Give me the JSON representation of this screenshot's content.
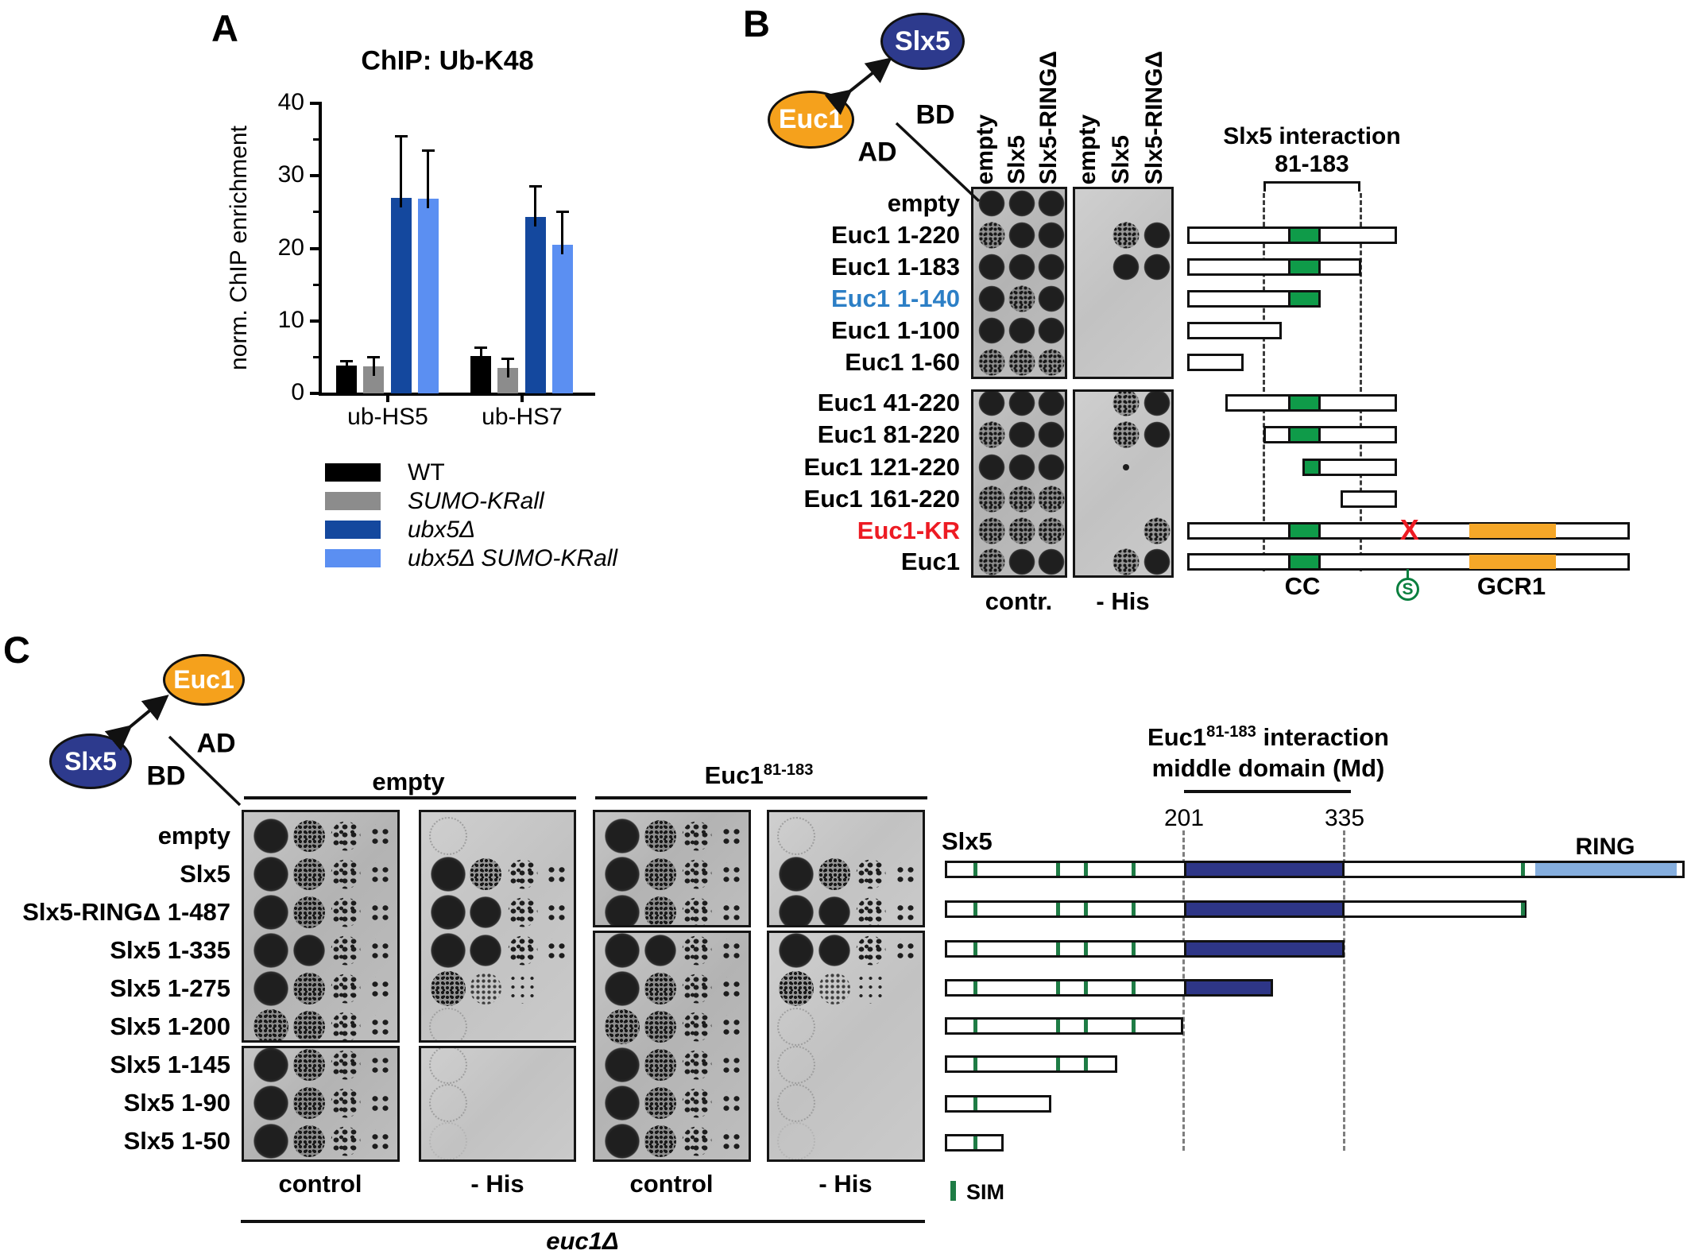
{
  "colors": {
    "dark_blue_bar": "#14489e",
    "light_blue_bar": "#5b8ff2",
    "gray_bar": "#8c8c8c",
    "black_bar": "#000000",
    "slx5_oval": "#2d3a8d",
    "euc1_oval": "#f5a11c",
    "cc_green": "#0f9b49",
    "sim_green": "#1e7c45",
    "md_blue": "#2e3687",
    "ring_blue": "#85aede",
    "gcr1_orange": "#f5a728",
    "red": "#ed1b23",
    "label_blue": "#2c7fc6"
  },
  "panelA": {
    "label": "A",
    "title": "ChIP: Ub-K48",
    "ylabel": "norm. ChIP enrichment",
    "chart_data": {
      "type": "bar",
      "categories": [
        "ub-HS5",
        "ub-HS7"
      ],
      "series": [
        {
          "name": "WT",
          "italic": false,
          "color": "#000000",
          "values": [
            3.8,
            5.2
          ],
          "errors": [
            0.6,
            1.1
          ]
        },
        {
          "name": "SUMO-KRall",
          "italic": true,
          "color": "#8c8c8c",
          "values": [
            3.7,
            3.5
          ],
          "errors": [
            1.3,
            1.3
          ]
        },
        {
          "name": "ubx5Δ",
          "italic": true,
          "color": "#14489e",
          "values": [
            27.0,
            24.3
          ],
          "errors": [
            8.5,
            4.2
          ]
        },
        {
          "name": "ubx5Δ SUMO-KRall",
          "italic": true,
          "color": "#5b8ff2",
          "values": [
            26.8,
            20.5
          ],
          "errors": [
            6.7,
            4.5
          ]
        }
      ],
      "ylim": [
        0,
        40
      ],
      "yticks_major": [
        0,
        10,
        20,
        30,
        40
      ],
      "yticks_minor": [
        5,
        15,
        25,
        35
      ],
      "grid": false,
      "legend_position": "below"
    }
  },
  "panelB": {
    "label": "B",
    "cartoon": {
      "top_protein": "Slx5",
      "bottom_protein": "Euc1",
      "bd": "BD",
      "ad": "AD"
    },
    "col_labels": [
      "empty",
      "Slx5",
      "Slx5-RINGΔ"
    ],
    "plate_labels": [
      "contr.",
      "- His"
    ],
    "interaction_title_line1": "Slx5 interaction",
    "interaction_title_line2": "81-183",
    "interaction_range": [
      81,
      183
    ],
    "domain_labels": {
      "cc": "CC",
      "s": "S",
      "gcr1": "GCR1",
      "x": "X"
    },
    "rows": [
      {
        "label": "empty",
        "color": "#000000",
        "block": 1,
        "contr": [
          "solid",
          "solid",
          "solid"
        ],
        "his": [
          "none",
          "none",
          "none"
        ],
        "bar": null
      },
      {
        "label": "Euc1 1-220",
        "color": "#000000",
        "block": 1,
        "contr": [
          "speckled",
          "solid",
          "solid"
        ],
        "his": [
          "none",
          "speckled",
          "solid"
        ],
        "bar": {
          "start": 1,
          "end": 220,
          "cc": [
            106,
            140
          ]
        }
      },
      {
        "label": "Euc1 1-183",
        "color": "#000000",
        "block": 1,
        "contr": [
          "solid",
          "solid",
          "solid"
        ],
        "his": [
          "none",
          "solid",
          "solid"
        ],
        "bar": {
          "start": 1,
          "end": 183,
          "cc": [
            106,
            140
          ]
        }
      },
      {
        "label": "Euc1 1-140",
        "color": "#2c7fc6",
        "block": 1,
        "contr": [
          "solid",
          "speckled",
          "solid"
        ],
        "his": [
          "none",
          "none",
          "none"
        ],
        "bar": {
          "start": 1,
          "end": 140,
          "cc": [
            106,
            140
          ]
        }
      },
      {
        "label": "Euc1 1-100",
        "color": "#000000",
        "block": 1,
        "contr": [
          "solid",
          "solid",
          "solid"
        ],
        "his": [
          "none",
          "none",
          "none"
        ],
        "bar": {
          "start": 1,
          "end": 100
        }
      },
      {
        "label": "Euc1 1-60",
        "color": "#000000",
        "block": 1,
        "contr": [
          "speckled",
          "speckled",
          "speckled"
        ],
        "his": [
          "none",
          "none",
          "none"
        ],
        "bar": {
          "start": 1,
          "end": 60
        }
      },
      {
        "label": "Euc1 41-220",
        "color": "#000000",
        "block": 2,
        "contr": [
          "solid",
          "solid",
          "solid"
        ],
        "his": [
          "none",
          "speckled",
          "solid"
        ],
        "bar": {
          "start": 41,
          "end": 220,
          "cc": [
            106,
            140
          ]
        }
      },
      {
        "label": "Euc1 81-220",
        "color": "#000000",
        "block": 2,
        "contr": [
          "speckled",
          "solid",
          "solid"
        ],
        "his": [
          "none",
          "speckled",
          "solid"
        ],
        "bar": {
          "start": 81,
          "end": 220,
          "cc": [
            106,
            140
          ]
        }
      },
      {
        "label": "Euc1 121-220",
        "color": "#000000",
        "block": 2,
        "contr": [
          "solid",
          "solid",
          "solid"
        ],
        "his": [
          "none",
          "tiny",
          "none"
        ],
        "bar": {
          "start": 121,
          "end": 220,
          "cc": [
            121,
            140
          ]
        }
      },
      {
        "label": "Euc1 161-220",
        "color": "#000000",
        "block": 2,
        "contr": [
          "speckled",
          "speckled",
          "speckled"
        ],
        "his": [
          "none",
          "none",
          "none"
        ],
        "bar": {
          "start": 161,
          "end": 220
        }
      },
      {
        "label": "Euc1-KR",
        "color": "#ed1b23",
        "block": 2,
        "contr": [
          "speckled",
          "speckled",
          "speckled"
        ],
        "his": [
          "none",
          "none",
          "speckled"
        ],
        "bar": {
          "start": 1,
          "end": 463,
          "cc": [
            106,
            140
          ],
          "gcr1": [
            295,
            386
          ],
          "x_at": 233
        }
      },
      {
        "label": "Euc1",
        "color": "#000000",
        "block": 2,
        "contr": [
          "speckled",
          "solid",
          "solid"
        ],
        "his": [
          "none",
          "speckled",
          "solid"
        ],
        "bar": {
          "start": 1,
          "end": 463,
          "cc": [
            106,
            140
          ],
          "gcr1": [
            295,
            386
          ],
          "s_at": 233
        }
      }
    ]
  },
  "panelC": {
    "label": "C",
    "cartoon": {
      "top_protein": "Euc1",
      "bottom_protein": "Slx5",
      "ad": "AD",
      "bd": "BD"
    },
    "group_titles": [
      {
        "text": "empty",
        "sup": ""
      },
      {
        "text": "Euc1",
        "sup": "81-183"
      }
    ],
    "plate_labels": [
      "control",
      "- His",
      "control",
      "- His"
    ],
    "strain": "euc1Δ",
    "diagram_title_main": "Euc1",
    "diagram_title_sup": "81-183",
    "diagram_title_rest": " interaction",
    "diagram_title_line2": "middle domain (Md)",
    "boundary_labels": [
      "201",
      "335"
    ],
    "boundaries": [
      201,
      335
    ],
    "protein_label": "Slx5",
    "ring_label": "RING",
    "sim_legend": "SIM",
    "rows": [
      {
        "label": "empty",
        "contr": [
          "solid",
          "speckled",
          "colonies",
          "few"
        ],
        "his": [
          "ghost",
          "none",
          "none",
          "none"
        ],
        "bar": null
      },
      {
        "label": "Slx5",
        "contr": [
          "solid",
          "speckled",
          "colonies",
          "few"
        ],
        "his": [
          "solid",
          "speckled",
          "colonies",
          "few"
        ],
        "bar": {
          "start": 1,
          "end": 619,
          "sims": [
            25,
            94,
            117,
            157,
            482
          ],
          "md": [
            201,
            335
          ],
          "ring": [
            494,
            612
          ]
        }
      },
      {
        "label": "Slx5-RINGΔ 1-487",
        "contr": [
          "solid",
          "speckled",
          "colonies",
          "few"
        ],
        "his": [
          "solid",
          "solid",
          "colonies",
          "few"
        ],
        "bar": {
          "start": 1,
          "end": 487,
          "sims": [
            25,
            94,
            117,
            157,
            482
          ],
          "md": [
            201,
            335
          ]
        }
      },
      {
        "label": "Slx5 1-335",
        "contr": [
          "solid",
          "solid",
          "colonies",
          "few"
        ],
        "his": [
          "solid",
          "solid",
          "colonies",
          "few"
        ],
        "bar": {
          "start": 1,
          "end": 335,
          "sims": [
            25,
            94,
            117,
            157
          ],
          "md": [
            201,
            335
          ]
        }
      },
      {
        "label": "Slx5 1-275",
        "contr": [
          "solid",
          "speckled",
          "colonies",
          "few"
        ],
        "his": [
          "speckled",
          "sparse",
          "dots",
          "none"
        ],
        "bar": {
          "start": 1,
          "end": 275,
          "sims": [
            25,
            94,
            117,
            157
          ],
          "md": [
            201,
            275
          ]
        }
      },
      {
        "label": "Slx5 1-200",
        "contr": [
          "speckled",
          "speckled",
          "colonies",
          "few"
        ],
        "his": [
          "ghost",
          "none",
          "none",
          "none"
        ],
        "bar": {
          "start": 1,
          "end": 200,
          "sims": [
            25,
            94,
            117,
            157
          ]
        }
      },
      {
        "label": "Slx5 1-145",
        "contr": [
          "solid",
          "speckled",
          "colonies",
          "few"
        ],
        "his": [
          "ghost",
          "none",
          "none",
          "none"
        ],
        "bar": {
          "start": 1,
          "end": 145,
          "sims": [
            25,
            94,
            117
          ]
        }
      },
      {
        "label": "Slx5 1-90",
        "contr": [
          "solid",
          "speckled",
          "colonies",
          "few"
        ],
        "his": [
          "ghost",
          "none",
          "none",
          "none"
        ],
        "bar": {
          "start": 1,
          "end": 90,
          "sims": [
            25
          ]
        }
      },
      {
        "label": "Slx5 1-50",
        "contr": [
          "solid",
          "speckled",
          "colonies",
          "few"
        ],
        "his": [
          "faint",
          "none",
          "none",
          "none"
        ],
        "bar": {
          "start": 1,
          "end": 50,
          "sims": [
            25
          ]
        }
      }
    ]
  }
}
